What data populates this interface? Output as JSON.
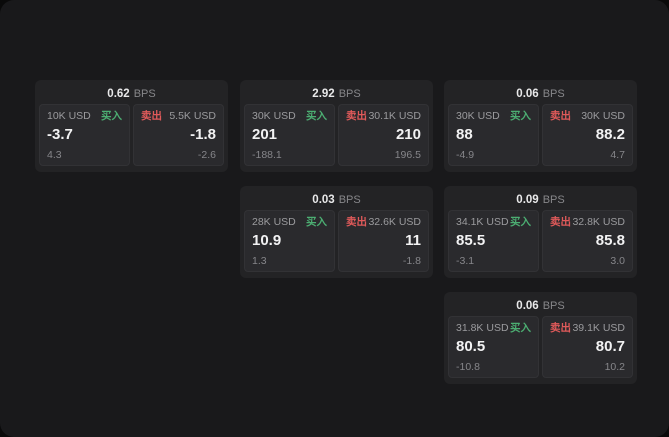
{
  "colors": {
    "background": "#19191b",
    "card_background": "#232325",
    "panel_background": "#2a2a2d",
    "buy_accent": "#4cae72",
    "sell_accent": "#e05a5a"
  },
  "cards": [
    {
      "bps_value": "0.62",
      "bps_label": "BPS",
      "buy": {
        "amount": "10K USD",
        "label": "买入",
        "price": "-3.7",
        "delta": "4.3"
      },
      "sell": {
        "amount": "5.5K USD",
        "label": "卖出",
        "price": "-1.8",
        "delta": "-2.6"
      }
    },
    {
      "bps_value": "2.92",
      "bps_label": "BPS",
      "buy": {
        "amount": "30K USD",
        "label": "买入",
        "price": "201",
        "delta": "-188.1"
      },
      "sell": {
        "amount": "30.1K USD",
        "label": "卖出",
        "price": "210",
        "delta": "196.5"
      }
    },
    {
      "bps_value": "0.06",
      "bps_label": "BPS",
      "buy": {
        "amount": "30K USD",
        "label": "买入",
        "price": "88",
        "delta": "-4.9"
      },
      "sell": {
        "amount": "30K USD",
        "label": "卖出",
        "price": "88.2",
        "delta": "4.7"
      }
    },
    {
      "bps_value": "0.03",
      "bps_label": "BPS",
      "buy": {
        "amount": "28K USD",
        "label": "买入",
        "price": "10.9",
        "delta": "1.3"
      },
      "sell": {
        "amount": "32.6K USD",
        "label": "卖出",
        "price": "11",
        "delta": "-1.8"
      }
    },
    {
      "bps_value": "0.09",
      "bps_label": "BPS",
      "buy": {
        "amount": "34.1K USD",
        "label": "买入",
        "price": "85.5",
        "delta": "-3.1"
      },
      "sell": {
        "amount": "32.8K USD",
        "label": "卖出",
        "price": "85.8",
        "delta": "3.0"
      }
    },
    {
      "bps_value": "0.06",
      "bps_label": "BPS",
      "buy": {
        "amount": "31.8K USD",
        "label": "买入",
        "price": "80.5",
        "delta": "-10.8"
      },
      "sell": {
        "amount": "39.1K USD",
        "label": "卖出",
        "price": "80.7",
        "delta": "10.2"
      }
    }
  ]
}
